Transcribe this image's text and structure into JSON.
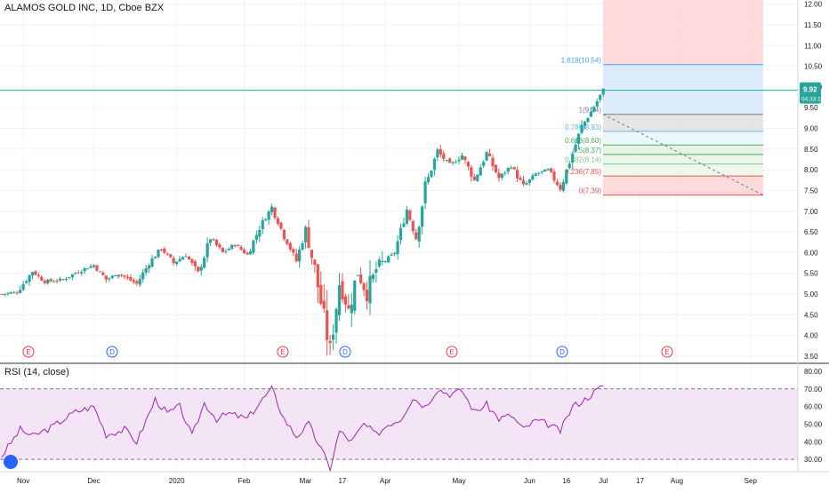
{
  "header": {
    "symbol_title": "ALAMOS GOLD INC, 1D, Cboe BZX"
  },
  "rsi_panel": {
    "title": "RSI (14, close)"
  },
  "price_badge": {
    "value": "9.92",
    "countdown": "04:33:14"
  },
  "colors": {
    "bull": "#26a69a",
    "bear": "#ef5350",
    "rsi_line": "#9c27b0",
    "rsi_band": "#f3e5f5",
    "fib_top": "#fdd5d3",
    "fib_blue": "#d6e9fb",
    "fib_gray": "#e1e1e1",
    "fib_green": "#e2f1e2",
    "earnings": "#f23645",
    "dividend": "#2962ff",
    "price_line": "#26a69a"
  },
  "icons": {
    "logo": "tradingview-logo-icon"
  },
  "chart_data": [
    {
      "type": "candlestick",
      "title": "ALAMOS GOLD INC, 1D, Cboe BZX",
      "x_tick_labels": [
        "Nov",
        "Dec",
        "2020",
        "Feb",
        "Mar",
        "17",
        "Apr",
        "May",
        "Jun",
        "16",
        "Jul",
        "17",
        "Aug",
        "Sep"
      ],
      "y_tick_labels": [
        "12.00",
        "11.50",
        "11.00",
        "10.50",
        "10.00",
        "9.50",
        "9.00",
        "8.50",
        "8.00",
        "7.50",
        "7.00",
        "6.50",
        "6.00",
        "5.50",
        "5.00",
        "4.50",
        "4.00",
        "3.50"
      ],
      "ylim": [
        3.35,
        12.1
      ],
      "last_price": 9.92,
      "close_path": [
        {
          "t": 0,
          "v": 5.0
        },
        {
          "t": 5,
          "v": 5.05
        },
        {
          "t": 10,
          "v": 5.55
        },
        {
          "t": 14,
          "v": 5.3
        },
        {
          "t": 20,
          "v": 5.35
        },
        {
          "t": 25,
          "v": 5.55
        },
        {
          "t": 30,
          "v": 5.7
        },
        {
          "t": 34,
          "v": 5.35
        },
        {
          "t": 38,
          "v": 5.5
        },
        {
          "t": 44,
          "v": 5.25
        },
        {
          "t": 48,
          "v": 5.75
        },
        {
          "t": 52,
          "v": 6.1
        },
        {
          "t": 56,
          "v": 5.75
        },
        {
          "t": 60,
          "v": 5.95
        },
        {
          "t": 64,
          "v": 5.5
        },
        {
          "t": 68,
          "v": 6.35
        },
        {
          "t": 72,
          "v": 6.0
        },
        {
          "t": 76,
          "v": 6.2
        },
        {
          "t": 80,
          "v": 5.95
        },
        {
          "t": 84,
          "v": 6.6
        },
        {
          "t": 88,
          "v": 7.1
        },
        {
          "t": 92,
          "v": 6.4
        },
        {
          "t": 96,
          "v": 5.8
        },
        {
          "t": 99,
          "v": 6.55
        },
        {
          "t": 102,
          "v": 5.6
        },
        {
          "t": 105,
          "v": 4.4
        },
        {
          "t": 107,
          "v": 3.65
        },
        {
          "t": 110,
          "v": 5.3
        },
        {
          "t": 113,
          "v": 4.6
        },
        {
          "t": 116,
          "v": 5.55
        },
        {
          "t": 119,
          "v": 5.0
        },
        {
          "t": 122,
          "v": 5.6
        },
        {
          "t": 125,
          "v": 5.8
        },
        {
          "t": 128,
          "v": 6.0
        },
        {
          "t": 132,
          "v": 7.05
        },
        {
          "t": 135,
          "v": 6.35
        },
        {
          "t": 138,
          "v": 7.6
        },
        {
          "t": 142,
          "v": 8.45
        },
        {
          "t": 146,
          "v": 8.1
        },
        {
          "t": 150,
          "v": 8.35
        },
        {
          "t": 154,
          "v": 7.75
        },
        {
          "t": 158,
          "v": 8.4
        },
        {
          "t": 162,
          "v": 7.8
        },
        {
          "t": 166,
          "v": 8.1
        },
        {
          "t": 170,
          "v": 7.6
        },
        {
          "t": 174,
          "v": 7.9
        },
        {
          "t": 178,
          "v": 8.0
        },
        {
          "t": 182,
          "v": 7.55
        },
        {
          "t": 186,
          "v": 8.4
        },
        {
          "t": 189,
          "v": 9.05
        },
        {
          "t": 192,
          "v": 9.4
        },
        {
          "t": 196,
          "v": 9.92
        }
      ],
      "fib_levels": [
        {
          "ratio": "1.618",
          "value": 10.54,
          "label": "1.618(10.54)"
        },
        {
          "ratio": "1",
          "value": 9.34,
          "label": "1(9.34)"
        },
        {
          "ratio": "0.786",
          "value": 8.93,
          "label": "0.786(8.93)"
        },
        {
          "ratio": "0.618",
          "value": 8.6,
          "label": "0.618(8.60)"
        },
        {
          "ratio": "0.5",
          "value": 8.37,
          "label": "0.5(8.37)"
        },
        {
          "ratio": "0.382",
          "value": 8.14,
          "label": "0.382(8.14)"
        },
        {
          "ratio": "0.236",
          "value": 7.85,
          "label": "0.236(7.85)"
        },
        {
          "ratio": "0",
          "value": 7.39,
          "label": "0(7.39)"
        }
      ],
      "fib_top": 12.1,
      "events": [
        {
          "kind": "E",
          "position": "Nov"
        },
        {
          "kind": "D",
          "position": "Dec"
        },
        {
          "kind": "E",
          "position": "Feb"
        },
        {
          "kind": "D",
          "position": "Mar"
        },
        {
          "kind": "E",
          "position": "Apr"
        },
        {
          "kind": "D",
          "position": "Jun"
        },
        {
          "kind": "E",
          "position": "Aug"
        }
      ]
    },
    {
      "type": "line",
      "title": "RSI (14, close)",
      "y_tick_labels": [
        "80.00",
        "70.00",
        "60.00",
        "50.00",
        "40.00",
        "30.00"
      ],
      "ylim": [
        23,
        84
      ],
      "bands": [
        30,
        70
      ],
      "values_path": [
        {
          "t": 0,
          "v": 32
        },
        {
          "t": 6,
          "v": 47
        },
        {
          "t": 10,
          "v": 43
        },
        {
          "t": 16,
          "v": 48
        },
        {
          "t": 24,
          "v": 57
        },
        {
          "t": 30,
          "v": 60
        },
        {
          "t": 34,
          "v": 44
        },
        {
          "t": 40,
          "v": 47
        },
        {
          "t": 44,
          "v": 40
        },
        {
          "t": 50,
          "v": 64
        },
        {
          "t": 54,
          "v": 56
        },
        {
          "t": 58,
          "v": 60
        },
        {
          "t": 62,
          "v": 43
        },
        {
          "t": 66,
          "v": 62
        },
        {
          "t": 70,
          "v": 53
        },
        {
          "t": 74,
          "v": 56
        },
        {
          "t": 80,
          "v": 53
        },
        {
          "t": 84,
          "v": 62
        },
        {
          "t": 88,
          "v": 70
        },
        {
          "t": 92,
          "v": 53
        },
        {
          "t": 96,
          "v": 43
        },
        {
          "t": 100,
          "v": 50
        },
        {
          "t": 104,
          "v": 36
        },
        {
          "t": 107,
          "v": 25
        },
        {
          "t": 110,
          "v": 46
        },
        {
          "t": 114,
          "v": 40
        },
        {
          "t": 118,
          "v": 50
        },
        {
          "t": 122,
          "v": 44
        },
        {
          "t": 126,
          "v": 50
        },
        {
          "t": 130,
          "v": 53
        },
        {
          "t": 134,
          "v": 65
        },
        {
          "t": 138,
          "v": 60
        },
        {
          "t": 142,
          "v": 70
        },
        {
          "t": 146,
          "v": 67
        },
        {
          "t": 150,
          "v": 69
        },
        {
          "t": 154,
          "v": 57
        },
        {
          "t": 158,
          "v": 61
        },
        {
          "t": 162,
          "v": 53
        },
        {
          "t": 166,
          "v": 55
        },
        {
          "t": 170,
          "v": 47
        },
        {
          "t": 174,
          "v": 52
        },
        {
          "t": 178,
          "v": 50
        },
        {
          "t": 182,
          "v": 46
        },
        {
          "t": 186,
          "v": 60
        },
        {
          "t": 190,
          "v": 64
        },
        {
          "t": 196,
          "v": 72
        }
      ]
    }
  ]
}
